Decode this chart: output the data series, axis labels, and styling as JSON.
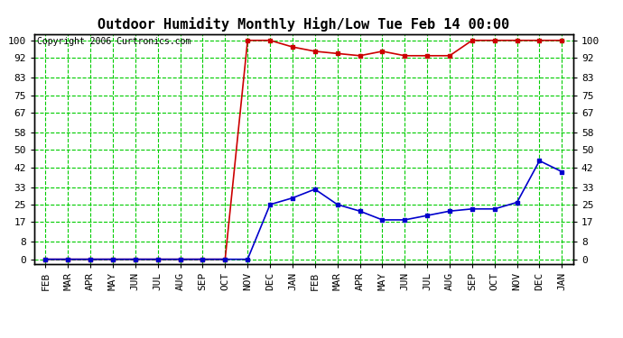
{
  "title": "Outdoor Humidity Monthly High/Low Tue Feb 14 00:00",
  "copyright": "Copyright 2006 Curtronics.com",
  "x_labels": [
    "FEB",
    "MAR",
    "APR",
    "MAY",
    "JUN",
    "JUL",
    "AUG",
    "SEP",
    "OCT",
    "NOV",
    "DEC",
    "JAN",
    "FEB",
    "MAR",
    "APR",
    "MAY",
    "JUN",
    "JUL",
    "AUG",
    "SEP",
    "OCT",
    "NOV",
    "DEC",
    "JAN"
  ],
  "high_values": [
    0,
    0,
    0,
    0,
    0,
    0,
    0,
    0,
    0,
    100,
    100,
    97,
    95,
    94,
    93,
    95,
    93,
    93,
    93,
    100,
    100,
    100,
    100,
    100
  ],
  "low_values": [
    0,
    0,
    0,
    0,
    0,
    0,
    0,
    0,
    0,
    0,
    25,
    28,
    32,
    25,
    22,
    18,
    18,
    20,
    22,
    23,
    23,
    26,
    45,
    40
  ],
  "high_color": "#cc0000",
  "low_color": "#0000cc",
  "bg_color": "#ffffff",
  "plot_bg": "#ffffff",
  "grid_green_color": "#00cc00",
  "grid_grey_color": "#aaaaaa",
  "yticks": [
    0,
    8,
    17,
    25,
    33,
    42,
    50,
    58,
    67,
    75,
    83,
    92,
    100
  ],
  "ylim": [
    -2,
    103
  ],
  "title_fontsize": 11,
  "axis_fontsize": 8,
  "marker": "s",
  "markersize": 3.5,
  "linewidth": 1.2
}
